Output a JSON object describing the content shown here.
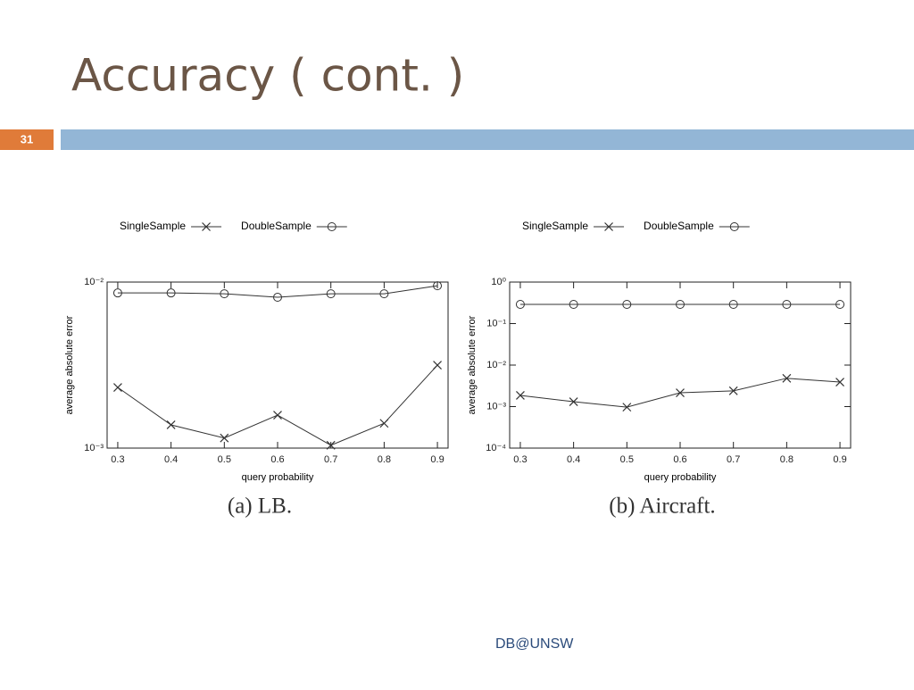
{
  "slide": {
    "title": "Accuracy ( cont. )",
    "number": "31",
    "footer": "DB@UNSW"
  },
  "chart_data": [
    {
      "type": "line",
      "caption": "(a) LB.",
      "x_label": "query probability",
      "y_label": "average absolute error",
      "x": [
        0.3,
        0.4,
        0.5,
        0.6,
        0.7,
        0.8,
        0.9
      ],
      "xlim": [
        0.28,
        0.92
      ],
      "xticks": [
        0.3,
        0.4,
        0.5,
        0.6,
        0.7,
        0.8,
        0.9
      ],
      "yscale": "log",
      "ylim": [
        0.001,
        0.01
      ],
      "yticks": [
        {
          "value": 0.001,
          "label": "10⁻³"
        },
        {
          "value": 0.01,
          "label": "10⁻²"
        }
      ],
      "legend": "top",
      "series": [
        {
          "name": "SingleSample",
          "color": "#333333",
          "marker": "x",
          "values": [
            0.00232,
            0.00138,
            0.00115,
            0.00158,
            0.00104,
            0.00141,
            0.00316
          ]
        },
        {
          "name": "DoubleSample",
          "color": "#333333",
          "marker": "circle",
          "values": [
            0.0086,
            0.0086,
            0.0085,
            0.0081,
            0.0085,
            0.0085,
            0.0095
          ]
        }
      ]
    },
    {
      "type": "line",
      "caption": "(b) Aircraft.",
      "x_label": "query probability",
      "y_label": "average absolute error",
      "x": [
        0.3,
        0.4,
        0.5,
        0.6,
        0.7,
        0.8,
        0.9
      ],
      "xlim": [
        0.28,
        0.92
      ],
      "xticks": [
        0.3,
        0.4,
        0.5,
        0.6,
        0.7,
        0.8,
        0.9
      ],
      "yscale": "log",
      "ylim": [
        0.0001,
        1
      ],
      "yticks": [
        {
          "value": 0.0001,
          "label": "10⁻⁴"
        },
        {
          "value": 0.001,
          "label": "10⁻³"
        },
        {
          "value": 0.01,
          "label": "10⁻²"
        },
        {
          "value": 0.1,
          "label": "10⁻¹"
        },
        {
          "value": 1,
          "label": "10⁰"
        }
      ],
      "legend": "top",
      "series": [
        {
          "name": "SingleSample",
          "color": "#333333",
          "marker": "x",
          "values": [
            0.00186,
            0.00131,
            0.00097,
            0.00215,
            0.0024,
            0.0048,
            0.0039
          ]
        },
        {
          "name": "DoubleSample",
          "color": "#333333",
          "marker": "circle",
          "values": [
            0.29,
            0.29,
            0.29,
            0.29,
            0.29,
            0.29,
            0.29
          ]
        }
      ]
    }
  ]
}
